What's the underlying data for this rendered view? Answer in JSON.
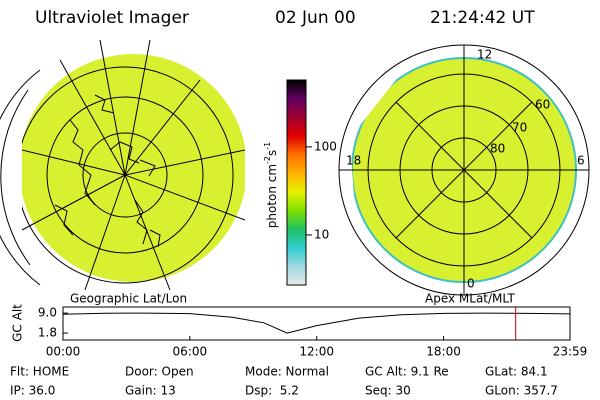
{
  "header": {
    "title": "Ultraviolet Imager",
    "date": "02 Jun 00",
    "time": "21:24:42 UT"
  },
  "colorbar": {
    "label": [
      "photon cm",
      "-2",
      "s",
      "-1"
    ],
    "scale": "log",
    "lim": [
      2.7,
      575
    ],
    "ticks": [
      10,
      100
    ],
    "colors": [
      "#e8e8e8",
      "#9fd8e0",
      "#30d0d0",
      "#20c060",
      "#80e000",
      "#e8f000",
      "#ffb000",
      "#ff7000",
      "#e00000",
      "#a00030",
      "#600060",
      "#000000"
    ]
  },
  "left_panel": {
    "label": "Geographic Lat/Lon"
  },
  "right_panel": {
    "label": "Apex MLat/MLT",
    "mlt_labels": [
      "12",
      "18",
      "6",
      "0"
    ],
    "mlat_labels": [
      "60",
      "70",
      "80"
    ]
  },
  "chart_data": {
    "type": "line",
    "ylabel": "GC Alt",
    "x": [
      0,
      2,
      4,
      6,
      8,
      9.5,
      10.6,
      12,
      14,
      16,
      18,
      20,
      22,
      23.98
    ],
    "values": [
      8.6,
      8.95,
      9.0,
      8.8,
      7.5,
      5.5,
      1.8,
      4.5,
      7.2,
      8.4,
      8.9,
      9.0,
      8.9,
      8.7
    ],
    "color": "#000000",
    "xlim": [
      0,
      23.98
    ],
    "xticks": [
      {
        "value": 0,
        "label": "00:00"
      },
      {
        "value": 6,
        "label": "06:00"
      },
      {
        "value": 12,
        "label": "12:00"
      },
      {
        "value": 18,
        "label": "18:00"
      },
      {
        "value": 23.98,
        "label": "23:59"
      }
    ],
    "ylim": [
      -0.7,
      11.2
    ],
    "yticks": [
      {
        "value": 9.0,
        "label": "9.0"
      },
      {
        "value": 1.8,
        "label": "1.8"
      }
    ],
    "marker": 21.41,
    "marker_color": "#c00000"
  },
  "footer": {
    "rows": [
      [
        "Flt: HOME",
        "Door: Open",
        "Mode: Normal",
        "GC Alt: 9.1 Re",
        "GLat: 84.1"
      ],
      [
        "IP: 36.0",
        "Gain: 13",
        "Dsp:  5.2",
        "Seq: 30",
        "GLon: 357.7"
      ]
    ]
  }
}
